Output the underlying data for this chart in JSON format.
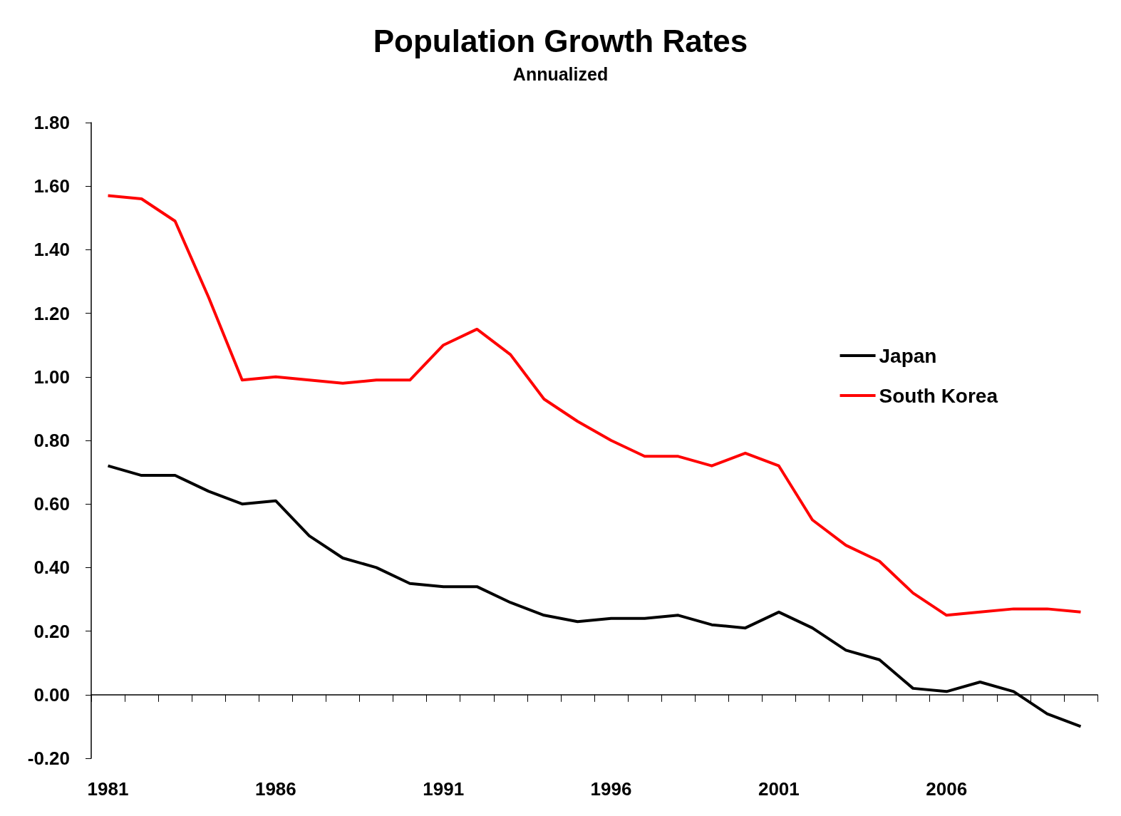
{
  "chart_data": {
    "type": "line",
    "title": "Population Growth Rates",
    "subtitle": "Annualized",
    "categories": [
      "1981",
      null,
      null,
      null,
      null,
      "1986",
      null,
      null,
      null,
      null,
      "1991",
      null,
      null,
      null,
      null,
      "1996",
      null,
      null,
      null,
      null,
      "2001",
      null,
      null,
      null,
      null,
      "2006",
      null,
      null,
      null,
      null
    ],
    "series": [
      {
        "name": "Japan",
        "color": "#000000",
        "values": [
          0.72,
          0.69,
          0.69,
          0.64,
          0.6,
          0.61,
          0.5,
          0.43,
          0.4,
          0.35,
          0.34,
          0.34,
          0.29,
          0.25,
          0.23,
          0.24,
          0.24,
          0.25,
          0.22,
          0.21,
          0.26,
          0.21,
          0.14,
          0.11,
          0.02,
          0.01,
          0.04,
          0.01,
          -0.06,
          -0.1
        ]
      },
      {
        "name": "South Korea",
        "color": "#ff0000",
        "values": [
          1.57,
          1.56,
          1.49,
          1.25,
          0.99,
          1.0,
          0.99,
          0.98,
          0.99,
          0.99,
          1.1,
          1.15,
          1.07,
          0.93,
          0.86,
          0.8,
          0.75,
          0.75,
          0.72,
          0.76,
          0.72,
          0.55,
          0.47,
          0.42,
          0.32,
          0.25,
          0.26,
          0.27,
          0.27,
          0.26
        ]
      }
    ],
    "ylim": [
      -0.2,
      1.8
    ],
    "yticks": [
      {
        "value": -0.2,
        "label": "-0.20"
      },
      {
        "value": 0,
        "label": "0.00"
      },
      {
        "value": 0.2,
        "label": "0.20"
      },
      {
        "value": 0.4,
        "label": "0.40"
      },
      {
        "value": 0.6,
        "label": "0.60"
      },
      {
        "value": 0.8,
        "label": "0.80"
      },
      {
        "value": 1.0,
        "label": "1.00"
      },
      {
        "value": 1.2,
        "label": "1.20"
      },
      {
        "value": 1.4,
        "label": "1.40"
      },
      {
        "value": 1.6,
        "label": "1.60"
      },
      {
        "value": 1.8,
        "label": "1.80"
      }
    ],
    "legend": "right",
    "marker": "none",
    "line_style": "solid"
  }
}
